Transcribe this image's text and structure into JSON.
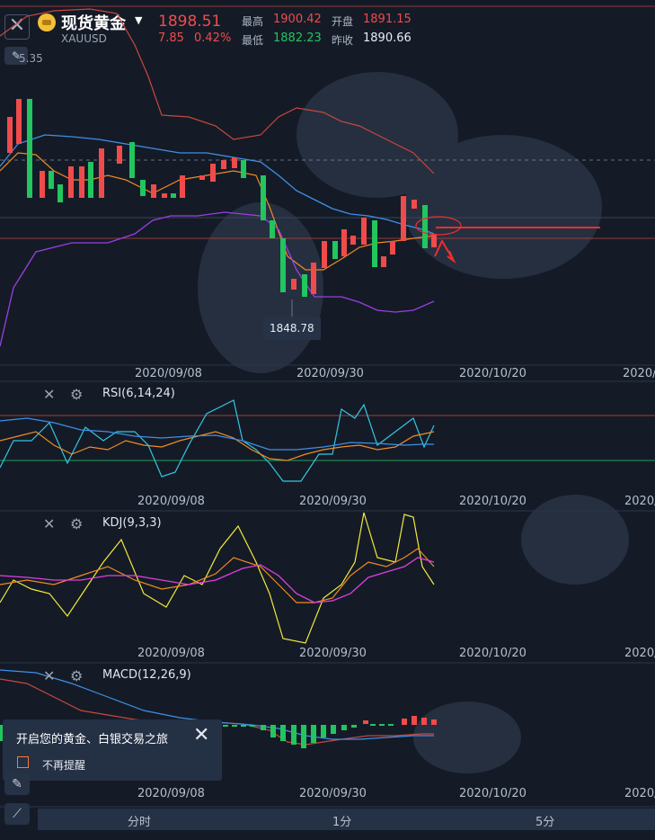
{
  "header": {
    "close_icon": "close-icon",
    "instrument_name": "现货黄金",
    "symbol": "XAUUSD",
    "price": "1898.51",
    "change": "7.85",
    "change_pct": "0.42%",
    "stats": {
      "high_label": "最高",
      "high_value": "1900.42",
      "open_label": "开盘",
      "open_value": "1891.15",
      "low_label": "最低",
      "low_value": "1882.23",
      "prev_label": "昨收",
      "prev_value": "1890.66"
    }
  },
  "main_chart": {
    "partial_value": "5.35",
    "low_marker": "1848.78",
    "date_axis": [
      "2020/09/08",
      "2020/09/30",
      "2020/10/20",
      "2020/"
    ]
  },
  "indicators": [
    {
      "label": "RSI(6,14,24)",
      "dates": [
        "2020/09/08",
        "2020/09/30",
        "2020/10/20",
        "2020/"
      ]
    },
    {
      "label": "KDJ(9,3,3)",
      "dates": [
        "2020/09/08",
        "2020/09/30",
        "2020/10/20",
        "2020/"
      ]
    },
    {
      "label": "MACD(12,26,9)",
      "dates": [
        "2020/09/08",
        "2020/09/30",
        "2020/10/20",
        "2020/"
      ]
    }
  ],
  "popup": {
    "title": "开启您的黄金、白银交易之旅",
    "checkbox_label": "不再提醒"
  },
  "tabs": [
    "分时",
    "1分",
    "5分"
  ],
  "colors": {
    "background": "#141b27",
    "up": "#f04b4b",
    "down": "#22c55e",
    "ma_blue": "#3f8fe6",
    "ma_orange": "#f08a24",
    "ma_purple": "#9b3fe0",
    "band_red": "#c8473d",
    "rsi_cyan": "#33c6e0",
    "kdj_yellow": "#f2e93a",
    "kdj_magenta": "#e03fe0"
  }
}
